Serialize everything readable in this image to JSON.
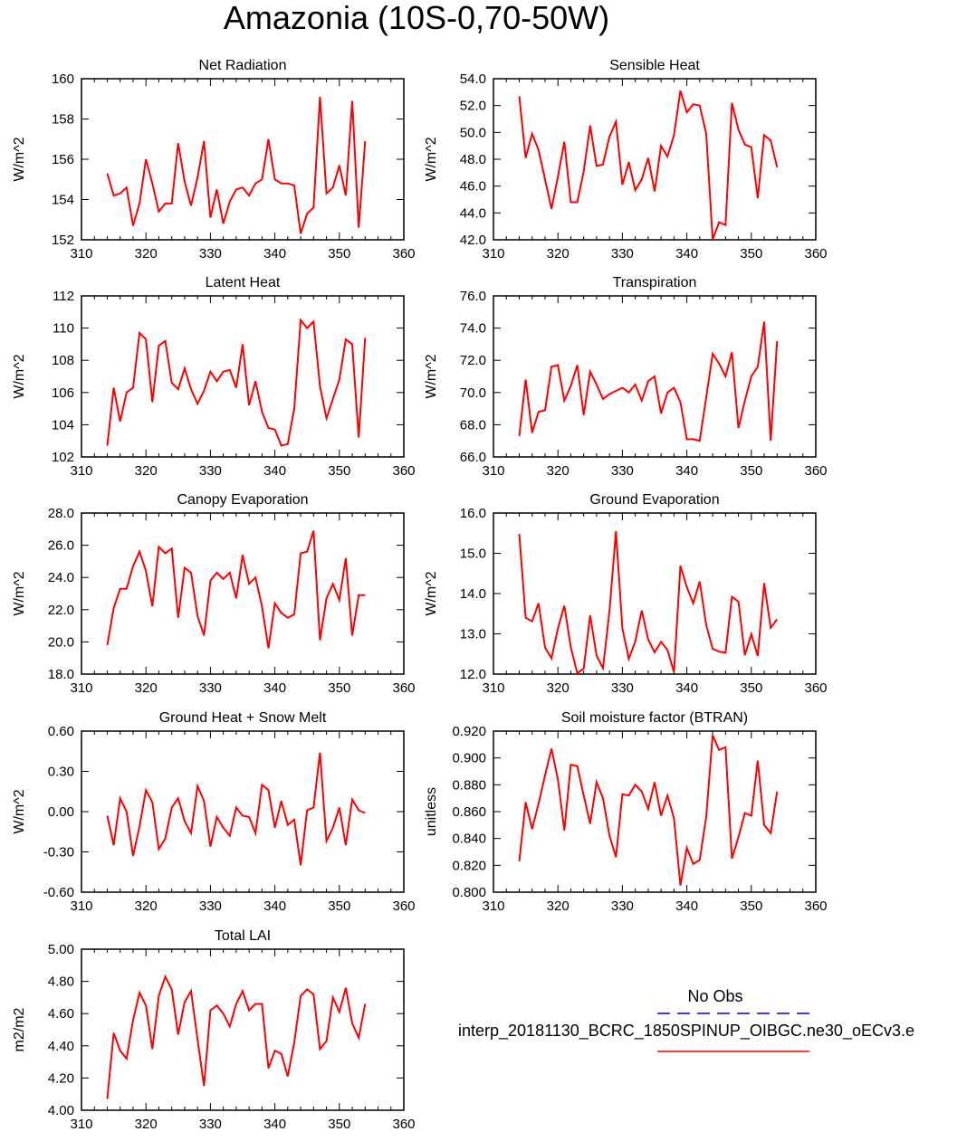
{
  "title": "Amazonia (10S-0,70-50W)",
  "chart_data": [
    {
      "type": "line",
      "title": "Net Radiation",
      "ylabel": "W/m^2",
      "xlabel": "",
      "xlim": [
        310,
        360
      ],
      "xticks": [
        310,
        320,
        330,
        340,
        350,
        360
      ],
      "ylim": [
        152,
        160
      ],
      "yticks": [
        "152",
        "154",
        "156",
        "158",
        "160"
      ],
      "series": [
        {
          "name": "interp_20181130_BCRC_1850SPINUP_OIBGC.ne30_oECv3.e",
          "color": "#ff0000",
          "x": [
            314,
            315,
            316,
            317,
            318,
            319,
            320,
            321,
            322,
            323,
            324,
            325,
            326,
            327,
            328,
            329,
            330,
            331,
            332,
            333,
            334,
            335,
            336,
            337,
            338,
            339,
            340,
            341,
            342,
            343,
            344,
            345,
            346,
            347,
            348,
            349,
            350,
            351,
            352,
            353,
            354
          ],
          "y": [
            155.3,
            154.2,
            154.3,
            154.6,
            152.7,
            153.8,
            156.0,
            154.8,
            153.4,
            153.8,
            153.8,
            156.8,
            154.9,
            153.7,
            155.1,
            156.9,
            153.1,
            154.5,
            152.8,
            153.9,
            154.5,
            154.6,
            154.2,
            154.8,
            155.0,
            157.0,
            155.0,
            154.8,
            154.8,
            154.7,
            152.3,
            153.3,
            153.6,
            159.1,
            154.3,
            154.6,
            155.7,
            154.2,
            158.9,
            152.6,
            156.9
          ]
        }
      ]
    },
    {
      "type": "line",
      "title": "Sensible Heat",
      "ylabel": "W/m^2",
      "xlabel": "",
      "xlim": [
        310,
        360
      ],
      "xticks": [
        310,
        320,
        330,
        340,
        350,
        360
      ],
      "ylim": [
        42,
        54
      ],
      "yticks": [
        "42.0",
        "44.0",
        "46.0",
        "48.0",
        "50.0",
        "52.0",
        "54.0"
      ],
      "series": [
        {
          "name": "interp_20181130_BCRC_1850SPINUP_OIBGC.ne30_oECv3.e",
          "color": "#ff0000",
          "x": [
            314,
            315,
            316,
            317,
            318,
            319,
            320,
            321,
            322,
            323,
            324,
            325,
            326,
            327,
            328,
            329,
            330,
            331,
            332,
            333,
            334,
            335,
            336,
            337,
            338,
            339,
            340,
            341,
            342,
            343,
            344,
            345,
            346,
            347,
            348,
            349,
            350,
            351,
            352,
            353,
            354
          ],
          "y": [
            52.7,
            48.1,
            49.9,
            48.7,
            46.5,
            44.3,
            46.7,
            49.3,
            44.8,
            44.8,
            47.1,
            50.5,
            47.5,
            47.6,
            49.7,
            50.8,
            46.1,
            47.8,
            45.7,
            46.5,
            48.1,
            45.6,
            49.0,
            48.2,
            49.8,
            53.1,
            51.5,
            52.1,
            52.0,
            49.9,
            42.0,
            43.3,
            43.1,
            52.2,
            50.2,
            49.1,
            48.9,
            45.1,
            49.8,
            49.4,
            47.4
          ]
        }
      ]
    },
    {
      "type": "line",
      "title": "Latent Heat",
      "ylabel": "W/m^2",
      "xlabel": "",
      "xlim": [
        310,
        360
      ],
      "xticks": [
        310,
        320,
        330,
        340,
        350,
        360
      ],
      "ylim": [
        102,
        112
      ],
      "yticks": [
        "102",
        "104",
        "106",
        "108",
        "110",
        "112"
      ],
      "series": [
        {
          "name": "interp_20181130_BCRC_1850SPINUP_OIBGC.ne30_oECv3.e",
          "color": "#ff0000",
          "x": [
            314,
            315,
            316,
            317,
            318,
            319,
            320,
            321,
            322,
            323,
            324,
            325,
            326,
            327,
            328,
            329,
            330,
            331,
            332,
            333,
            334,
            335,
            336,
            337,
            338,
            339,
            340,
            341,
            342,
            343,
            344,
            345,
            346,
            347,
            348,
            349,
            350,
            351,
            352,
            353,
            354
          ],
          "y": [
            102.7,
            106.3,
            104.2,
            106.0,
            106.3,
            109.7,
            109.3,
            105.4,
            108.9,
            109.2,
            106.6,
            106.2,
            107.5,
            106.2,
            105.3,
            106.1,
            107.3,
            106.7,
            107.3,
            107.4,
            106.3,
            109.0,
            105.2,
            106.7,
            104.8,
            103.8,
            103.7,
            102.7,
            102.8,
            105.0,
            110.5,
            110.0,
            110.4,
            106.4,
            104.4,
            105.6,
            106.8,
            109.3,
            109.0,
            103.2,
            109.4
          ]
        }
      ]
    },
    {
      "type": "line",
      "title": "Transpiration",
      "ylabel": "W/m^2",
      "xlabel": "",
      "xlim": [
        310,
        360
      ],
      "xticks": [
        310,
        320,
        330,
        340,
        350,
        360
      ],
      "ylim": [
        66,
        76
      ],
      "yticks": [
        "66.0",
        "68.0",
        "70.0",
        "72.0",
        "74.0",
        "76.0"
      ],
      "series": [
        {
          "name": "interp_20181130_BCRC_1850SPINUP_OIBGC.ne30_oECv3.e",
          "color": "#ff0000",
          "x": [
            314,
            315,
            316,
            317,
            318,
            319,
            320,
            321,
            322,
            323,
            324,
            325,
            326,
            327,
            328,
            329,
            330,
            331,
            332,
            333,
            334,
            335,
            336,
            337,
            338,
            339,
            340,
            341,
            342,
            343,
            344,
            345,
            346,
            347,
            348,
            349,
            350,
            351,
            352,
            353,
            354
          ],
          "y": [
            67.3,
            70.8,
            67.5,
            68.8,
            68.9,
            71.6,
            71.7,
            69.5,
            70.4,
            71.7,
            68.6,
            71.3,
            70.5,
            69.6,
            69.9,
            70.1,
            70.3,
            70.0,
            70.5,
            69.5,
            70.7,
            71.0,
            68.7,
            70.0,
            70.3,
            69.4,
            67.1,
            67.1,
            67.0,
            69.7,
            72.4,
            71.8,
            71.0,
            72.5,
            67.8,
            69.5,
            71.0,
            71.6,
            74.4,
            67.0,
            73.2
          ]
        }
      ]
    },
    {
      "type": "line",
      "title": "Canopy Evaporation",
      "ylabel": "W/m^2",
      "xlabel": "",
      "xlim": [
        310,
        360
      ],
      "xticks": [
        310,
        320,
        330,
        340,
        350,
        360
      ],
      "ylim": [
        18,
        28
      ],
      "yticks": [
        "18.0",
        "20.0",
        "22.0",
        "24.0",
        "26.0",
        "28.0"
      ],
      "series": [
        {
          "name": "interp_20181130_BCRC_1850SPINUP_OIBGC.ne30_oECv3.e",
          "color": "#ff0000",
          "x": [
            314,
            315,
            316,
            317,
            318,
            319,
            320,
            321,
            322,
            323,
            324,
            325,
            326,
            327,
            328,
            329,
            330,
            331,
            332,
            333,
            334,
            335,
            336,
            337,
            338,
            339,
            340,
            341,
            342,
            343,
            344,
            345,
            346,
            347,
            348,
            349,
            350,
            351,
            352,
            353,
            354
          ],
          "y": [
            19.8,
            22.1,
            23.3,
            23.3,
            24.7,
            25.6,
            24.4,
            22.2,
            25.9,
            25.5,
            25.8,
            21.5,
            24.6,
            24.3,
            21.6,
            20.4,
            23.8,
            24.3,
            23.9,
            24.3,
            22.7,
            25.4,
            23.6,
            24.0,
            22.2,
            19.6,
            22.4,
            21.8,
            21.5,
            21.7,
            25.5,
            25.6,
            26.9,
            20.1,
            22.7,
            23.6,
            22.6,
            25.2,
            20.4,
            22.9,
            22.9
          ]
        }
      ]
    },
    {
      "type": "line",
      "title": "Ground Evaporation",
      "ylabel": "W/m^2",
      "xlabel": "",
      "xlim": [
        310,
        360
      ],
      "xticks": [
        310,
        320,
        330,
        340,
        350,
        360
      ],
      "ylim": [
        12,
        16
      ],
      "yticks": [
        "12.0",
        "13.0",
        "14.0",
        "15.0",
        "16.0"
      ],
      "series": [
        {
          "name": "interp_20181130_BCRC_1850SPINUP_OIBGC.ne30_oECv3.e",
          "color": "#ff0000",
          "x": [
            314,
            315,
            316,
            317,
            318,
            319,
            320,
            321,
            322,
            323,
            324,
            325,
            326,
            327,
            328,
            329,
            330,
            331,
            332,
            333,
            334,
            335,
            336,
            337,
            338,
            339,
            340,
            341,
            342,
            343,
            344,
            345,
            346,
            347,
            348,
            349,
            350,
            351,
            352,
            353,
            354
          ],
          "y": [
            15.48,
            13.4,
            13.31,
            13.76,
            12.66,
            12.39,
            13.13,
            13.7,
            12.67,
            12.02,
            12.14,
            13.46,
            12.46,
            12.15,
            13.58,
            15.55,
            13.14,
            12.38,
            12.81,
            13.58,
            12.86,
            12.54,
            12.8,
            12.6,
            12.05,
            14.69,
            14.16,
            13.76,
            14.3,
            13.22,
            12.63,
            12.56,
            12.53,
            13.92,
            13.8,
            12.47,
            12.99,
            12.45,
            14.26,
            13.15,
            13.36
          ]
        }
      ]
    },
    {
      "type": "line",
      "title": "Ground Heat + Snow Melt",
      "ylabel": "W/m^2",
      "xlabel": "",
      "xlim": [
        310,
        360
      ],
      "xticks": [
        310,
        320,
        330,
        340,
        350,
        360
      ],
      "ylim": [
        -0.6,
        0.6
      ],
      "yticks": [
        "-0.60",
        "-0.30",
        "0.00",
        "0.30",
        "0.60"
      ],
      "series": [
        {
          "name": "interp_20181130_BCRC_1850SPINUP_OIBGC.ne30_oECv3.e",
          "color": "#ff0000",
          "x": [
            314,
            315,
            316,
            317,
            318,
            319,
            320,
            321,
            322,
            323,
            324,
            325,
            326,
            327,
            328,
            329,
            330,
            331,
            332,
            333,
            334,
            335,
            336,
            337,
            338,
            339,
            340,
            341,
            342,
            343,
            344,
            345,
            346,
            347,
            348,
            349,
            350,
            351,
            352,
            353,
            354
          ],
          "y": [
            -0.03,
            -0.25,
            0.1,
            0.0,
            -0.33,
            -0.11,
            0.16,
            0.07,
            -0.28,
            -0.2,
            0.03,
            0.1,
            -0.07,
            -0.16,
            0.19,
            0.08,
            -0.26,
            -0.04,
            -0.12,
            -0.18,
            0.03,
            -0.03,
            -0.04,
            -0.16,
            0.2,
            0.16,
            -0.12,
            0.08,
            -0.1,
            -0.06,
            -0.4,
            0.01,
            0.03,
            0.44,
            -0.22,
            -0.12,
            0.03,
            -0.25,
            0.09,
            0.01,
            -0.01
          ]
        }
      ]
    },
    {
      "type": "line",
      "title": "Soil moisture factor (BTRAN)",
      "ylabel": "unitless",
      "xlabel": "",
      "xlim": [
        310,
        360
      ],
      "xticks": [
        310,
        320,
        330,
        340,
        350,
        360
      ],
      "ylim": [
        0.8,
        0.92
      ],
      "yticks": [
        "0.800",
        "0.820",
        "0.840",
        "0.860",
        "0.880",
        "0.900",
        "0.920"
      ],
      "series": [
        {
          "name": "interp_20181130_BCRC_1850SPINUP_OIBGC.ne30_oECv3.e",
          "color": "#ff0000",
          "x": [
            314,
            315,
            316,
            317,
            318,
            319,
            320,
            321,
            322,
            323,
            324,
            325,
            326,
            327,
            328,
            329,
            330,
            331,
            332,
            333,
            334,
            335,
            336,
            337,
            338,
            339,
            340,
            341,
            342,
            343,
            344,
            345,
            346,
            347,
            348,
            349,
            350,
            351,
            352,
            353,
            354
          ],
          "y": [
            0.823,
            0.867,
            0.847,
            0.866,
            0.887,
            0.907,
            0.884,
            0.846,
            0.895,
            0.894,
            0.872,
            0.851,
            0.882,
            0.87,
            0.842,
            0.826,
            0.873,
            0.872,
            0.88,
            0.875,
            0.862,
            0.882,
            0.857,
            0.872,
            0.855,
            0.805,
            0.833,
            0.821,
            0.824,
            0.856,
            0.917,
            0.906,
            0.908,
            0.825,
            0.841,
            0.859,
            0.857,
            0.898,
            0.85,
            0.844,
            0.875
          ]
        }
      ]
    },
    {
      "type": "line",
      "title": "Total LAI",
      "ylabel": "m2/m2",
      "xlabel": "",
      "xlim": [
        310,
        360
      ],
      "xticks": [
        310,
        320,
        330,
        340,
        350,
        360
      ],
      "ylim": [
        4.0,
        5.0
      ],
      "yticks": [
        "4.00",
        "4.20",
        "4.40",
        "4.60",
        "4.80",
        "5.00"
      ],
      "series": [
        {
          "name": "interp_20181130_BCRC_1850SPINUP_OIBGC.ne30_oECv3.e",
          "color": "#ff0000",
          "x": [
            314,
            315,
            316,
            317,
            318,
            319,
            320,
            321,
            322,
            323,
            324,
            325,
            326,
            327,
            328,
            329,
            330,
            331,
            332,
            333,
            334,
            335,
            336,
            337,
            338,
            339,
            340,
            341,
            342,
            343,
            344,
            345,
            346,
            347,
            348,
            349,
            350,
            351,
            352,
            353,
            354
          ],
          "y": [
            4.07,
            4.48,
            4.37,
            4.32,
            4.56,
            4.73,
            4.65,
            4.38,
            4.71,
            4.83,
            4.75,
            4.47,
            4.67,
            4.74,
            4.44,
            4.15,
            4.62,
            4.65,
            4.6,
            4.52,
            4.66,
            4.74,
            4.62,
            4.66,
            4.66,
            4.26,
            4.37,
            4.35,
            4.21,
            4.42,
            4.71,
            4.75,
            4.72,
            4.38,
            4.43,
            4.7,
            4.61,
            4.76,
            4.54,
            4.45,
            4.66
          ]
        }
      ]
    }
  ],
  "legend": {
    "entries": [
      {
        "label": "No Obs",
        "color": "#0000cc",
        "dash": "dashed"
      },
      {
        "label": "interp_20181130_BCRC_1850SPINUP_OIBGC.ne30_oECv3.e",
        "color": "#ff0000",
        "dash": "solid"
      }
    ]
  }
}
